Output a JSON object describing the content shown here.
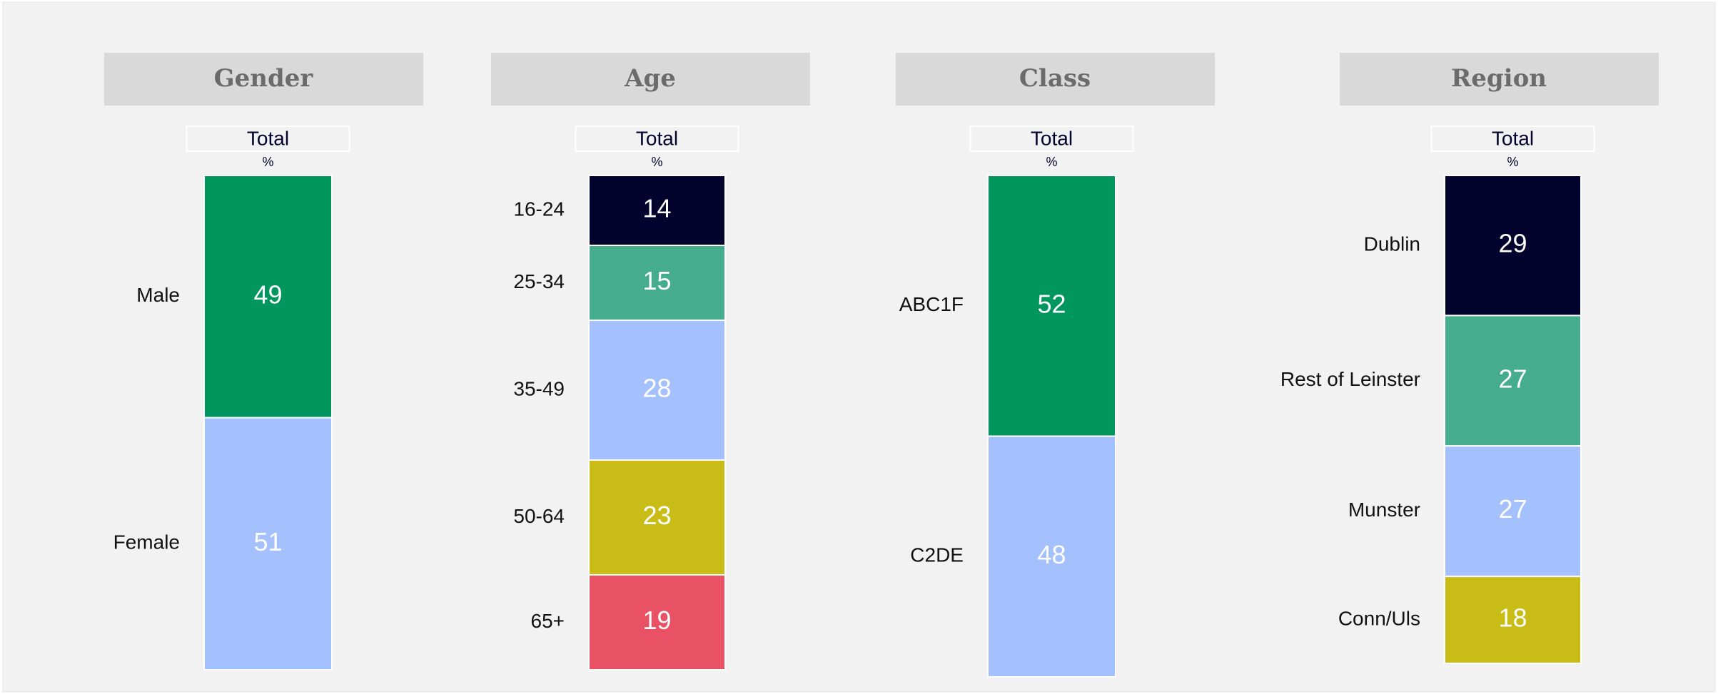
{
  "chart_data": [
    {
      "type": "stacked-bar",
      "title": "Gender",
      "column_label": "Total",
      "unit_label": "%",
      "series": [
        {
          "name": "Male",
          "color": "#00965e",
          "values": [
            49
          ]
        },
        {
          "name": "Female",
          "color": "#a4c0fd",
          "values": [
            51
          ]
        }
      ]
    },
    {
      "type": "stacked-bar",
      "title": "Age",
      "column_label": "Total",
      "unit_label": "%",
      "series": [
        {
          "name": "16-24",
          "color": "#03032e",
          "values": [
            14
          ]
        },
        {
          "name": "25-34",
          "color": "#45ad8b",
          "values": [
            15
          ]
        },
        {
          "name": "35-49",
          "color": "#a4c0fd",
          "values": [
            28
          ]
        },
        {
          "name": "50-64",
          "color": "#c9bc17",
          "values": [
            23
          ]
        },
        {
          "name": "65+",
          "color": "#e85264",
          "values": [
            19
          ]
        }
      ]
    },
    {
      "type": "stacked-bar",
      "title": "Class",
      "column_label": "Total",
      "unit_label": "%",
      "series": [
        {
          "name": "ABC1F",
          "color": "#00965e",
          "values": [
            52
          ]
        },
        {
          "name": "C2DE",
          "color": "#a4c0fd",
          "values": [
            48
          ]
        }
      ]
    },
    {
      "type": "stacked-bar",
      "title": "Region",
      "column_label": "Total",
      "unit_label": "%",
      "series": [
        {
          "name": "Dublin",
          "color": "#03032e",
          "values": [
            29
          ]
        },
        {
          "name": "Rest of Leinster",
          "color": "#45ad8b",
          "values": [
            27
          ]
        },
        {
          "name": "Munster",
          "color": "#a4c0fd",
          "values": [
            27
          ]
        },
        {
          "name": "Conn/Uls",
          "color": "#c9bc17",
          "values": [
            18
          ]
        }
      ]
    }
  ]
}
